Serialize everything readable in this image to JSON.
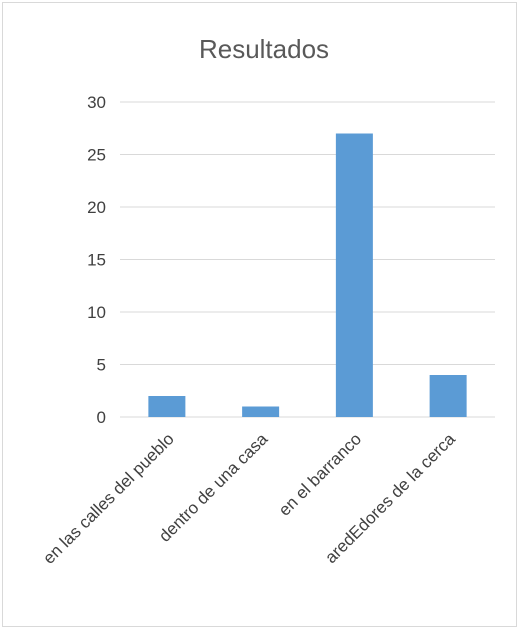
{
  "chart_data": {
    "type": "bar",
    "title": "Resultados",
    "xlabel": "",
    "ylabel": "",
    "categories": [
      "en las calles del pueblo",
      "dentro de una casa",
      "en el barranco",
      "aredEdores de la cerca"
    ],
    "values": [
      2,
      1,
      27,
      4
    ],
    "ylim": [
      0,
      30
    ],
    "yticks": [
      0,
      5,
      10,
      15,
      20,
      25,
      30
    ],
    "grid": true,
    "legend": "none",
    "bar_color": "#5b9bd5"
  }
}
